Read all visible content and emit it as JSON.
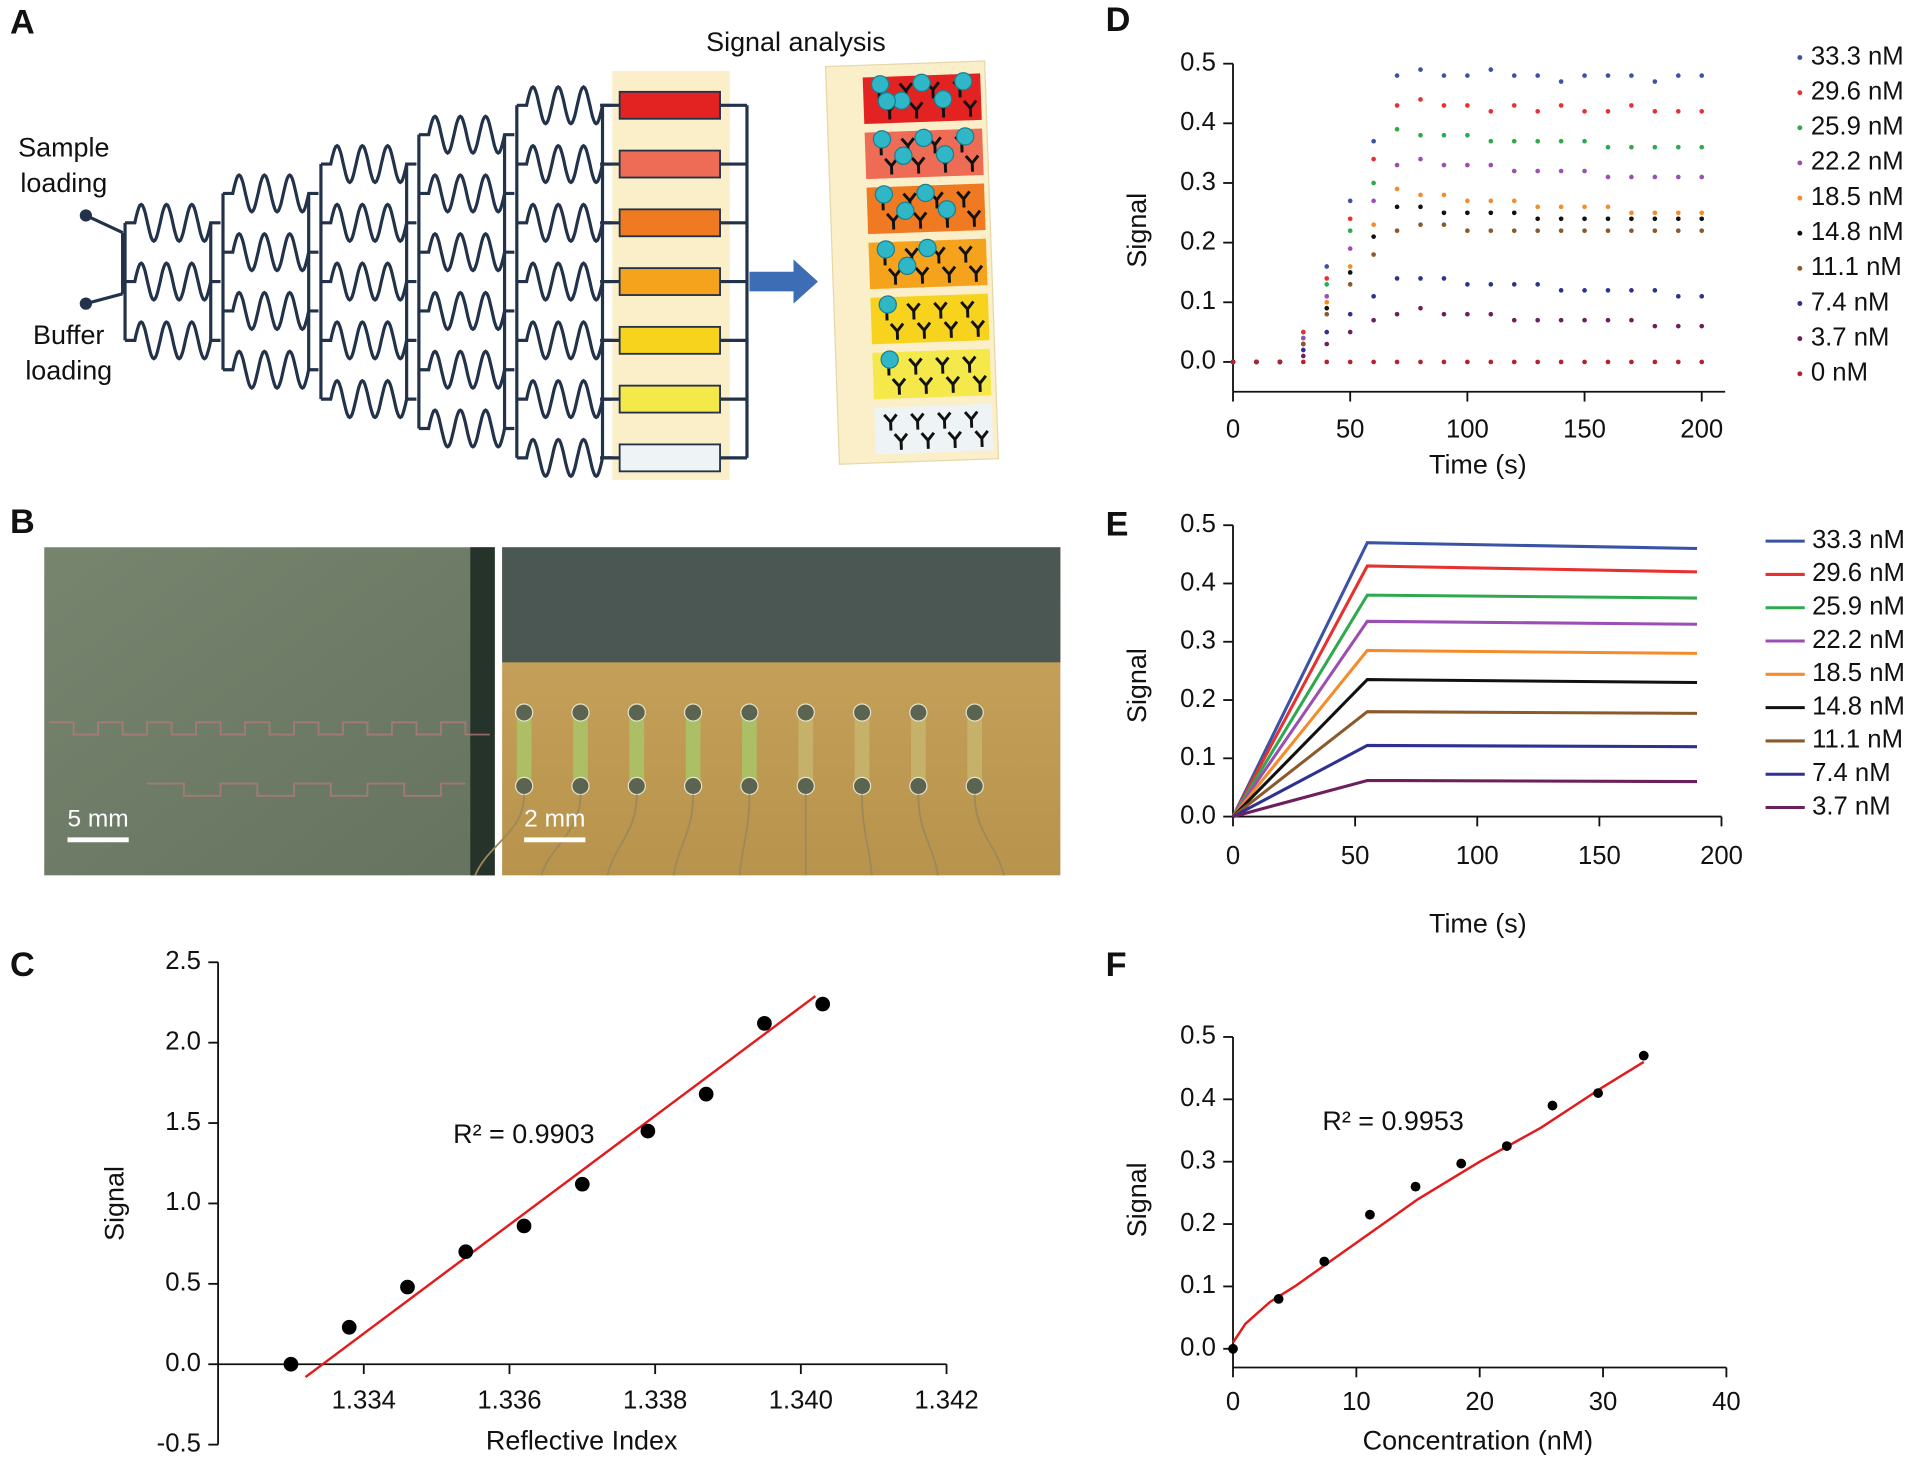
{
  "figure": {
    "panel_labels": [
      "A",
      "B",
      "C",
      "D",
      "E",
      "F"
    ],
    "panel_a": {
      "sample_loading": [
        "Sample",
        "loading"
      ],
      "buffer_loading": [
        "Buffer",
        "loading"
      ],
      "signal_analysis": "Signal analysis"
    },
    "panel_b": {
      "scale_bars": [
        "5 mm",
        "2 mm"
      ]
    }
  },
  "chart_data": [
    {
      "type": "scatter",
      "x_label": "Reflective Index",
      "y_label": "Signal",
      "annotation": "R² = 0.9903",
      "x": [
        1.333,
        1.3338,
        1.3346,
        1.3354,
        1.3362,
        1.337,
        1.3379,
        1.3387,
        1.3395,
        1.3403
      ],
      "values": [
        0,
        0.23,
        0.48,
        0.7,
        0.86,
        1.12,
        1.45,
        1.68,
        2.12,
        2.24
      ],
      "color": "#000000",
      "fit": {
        "x": [
          1.3332,
          1.3402
        ],
        "values": [
          -0.08,
          2.29
        ],
        "color": "#e31a1c"
      },
      "xlim": [
        1.332,
        1.342
      ],
      "xticks": [
        1.334,
        1.336,
        1.338,
        {
          "value": 1.34,
          "label": "1.340"
        },
        1.342
      ],
      "ylim": [
        -0.5,
        2.5
      ],
      "yticks": [
        -0.5,
        {
          "value": 0,
          "label": "0.0"
        },
        0.5,
        {
          "value": 1,
          "label": "1.0"
        },
        1.5,
        {
          "value": 2,
          "label": "2.0"
        },
        2.5
      ]
    },
    {
      "type": "scatter",
      "x_label": "Time (s)",
      "y_label": "Signal",
      "x": [
        0,
        10,
        20,
        30,
        40,
        50,
        60,
        70,
        80,
        90,
        100,
        110,
        120,
        130,
        140,
        150,
        160,
        170,
        180,
        190,
        200
      ],
      "series": [
        {
          "name": "33.3 nM",
          "color": "#3a53a4",
          "values": [
            0,
            0,
            0,
            0.05,
            0.16,
            0.27,
            0.37,
            0.48,
            0.49,
            0.48,
            0.48,
            0.49,
            0.48,
            0.48,
            0.47,
            0.48,
            0.48,
            0.48,
            0.47,
            0.48,
            0.48
          ]
        },
        {
          "name": "29.6 nM",
          "color": "#e8312f",
          "values": [
            0,
            0,
            0,
            0.05,
            0.14,
            0.24,
            0.34,
            0.43,
            0.44,
            0.43,
            0.43,
            0.42,
            0.43,
            0.42,
            0.43,
            0.42,
            0.42,
            0.43,
            0.42,
            0.42,
            0.42
          ]
        },
        {
          "name": "25.9 nM",
          "color": "#2fa84f",
          "values": [
            0,
            0,
            0,
            0.04,
            0.13,
            0.22,
            0.3,
            0.39,
            0.38,
            0.38,
            0.38,
            0.37,
            0.37,
            0.37,
            0.37,
            0.37,
            0.36,
            0.36,
            0.36,
            0.36,
            0.36
          ]
        },
        {
          "name": "22.2 nM",
          "color": "#9b4fb3",
          "values": [
            0,
            0,
            0,
            0.04,
            0.11,
            0.19,
            0.27,
            0.33,
            0.34,
            0.33,
            0.33,
            0.33,
            0.32,
            0.32,
            0.32,
            0.32,
            0.31,
            0.31,
            0.31,
            0.31,
            0.31
          ]
        },
        {
          "name": "18.5 nM",
          "color": "#f58b2a",
          "values": [
            0,
            0,
            0,
            0.03,
            0.1,
            0.16,
            0.23,
            0.29,
            0.28,
            0.28,
            0.27,
            0.27,
            0.27,
            0.26,
            0.26,
            0.26,
            0.26,
            0.25,
            0.25,
            0.25,
            0.25
          ]
        },
        {
          "name": "14.8 nM",
          "color": "#111111",
          "values": [
            0,
            0,
            0,
            0.03,
            0.09,
            0.15,
            0.21,
            0.26,
            0.26,
            0.25,
            0.25,
            0.25,
            0.25,
            0.24,
            0.24,
            0.24,
            0.24,
            0.24,
            0.24,
            0.24,
            0.24
          ]
        },
        {
          "name": "11.1 nM",
          "color": "#8b5a2b",
          "values": [
            0,
            0,
            0,
            0.03,
            0.08,
            0.13,
            0.18,
            0.22,
            0.23,
            0.23,
            0.22,
            0.22,
            0.22,
            0.22,
            0.22,
            0.22,
            0.22,
            0.22,
            0.22,
            0.22,
            0.22
          ]
        },
        {
          "name": "7.4 nM",
          "color": "#2e3192",
          "values": [
            0,
            0,
            0,
            0.02,
            0.05,
            0.08,
            0.11,
            0.14,
            0.14,
            0.14,
            0.13,
            0.13,
            0.13,
            0.13,
            0.12,
            0.12,
            0.12,
            0.12,
            0.12,
            0.11,
            0.11
          ]
        },
        {
          "name": "3.7 nM",
          "color": "#6b1f5c",
          "values": [
            0,
            0,
            0,
            0.01,
            0.03,
            0.05,
            0.07,
            0.08,
            0.09,
            0.08,
            0.08,
            0.08,
            0.07,
            0.07,
            0.07,
            0.07,
            0.07,
            0.07,
            0.06,
            0.06,
            0.06
          ]
        },
        {
          "name": "0 nM",
          "color": "#b2242b",
          "values": [
            0,
            0,
            0,
            0,
            0,
            0,
            0,
            0,
            0,
            0,
            0,
            0,
            0,
            0,
            0,
            0,
            0,
            0,
            0,
            0,
            0
          ]
        }
      ],
      "xlim": [
        0,
        210
      ],
      "xticks": [
        0,
        50,
        100,
        150,
        200
      ],
      "ylim": [
        -0.05,
        0.5
      ],
      "yticks": [
        {
          "value": 0,
          "label": "0.0"
        },
        0.1,
        0.2,
        0.3,
        0.4,
        0.5
      ]
    },
    {
      "type": "line",
      "x_label": "Time (s)",
      "y_label": "Signal",
      "x": [
        0,
        55,
        190
      ],
      "series": [
        {
          "name": "33.3 nM",
          "color": "#3a53a4",
          "values": [
            0,
            0.47,
            0.46
          ]
        },
        {
          "name": "29.6 nM",
          "color": "#e8312f",
          "values": [
            0,
            0.43,
            0.42
          ]
        },
        {
          "name": "25.9 nM",
          "color": "#2fa84f",
          "values": [
            0,
            0.38,
            0.375
          ]
        },
        {
          "name": "22.2 nM",
          "color": "#9b4fb3",
          "values": [
            0,
            0.335,
            0.33
          ]
        },
        {
          "name": "18.5 nM",
          "color": "#f58b2a",
          "values": [
            0,
            0.285,
            0.28
          ]
        },
        {
          "name": "14.8 nM",
          "color": "#111111",
          "values": [
            0,
            0.235,
            0.23
          ]
        },
        {
          "name": "11.1 nM",
          "color": "#8b5a2b",
          "values": [
            0,
            0.18,
            0.177
          ]
        },
        {
          "name": "7.4 nM",
          "color": "#2e3192",
          "values": [
            0,
            0.122,
            0.12
          ]
        },
        {
          "name": "3.7 nM",
          "color": "#6b1f5c",
          "values": [
            0,
            0.062,
            0.06
          ]
        }
      ],
      "xlim": [
        0,
        200
      ],
      "xticks": [
        0,
        50,
        100,
        150,
        200
      ],
      "ylim": [
        0,
        0.5
      ],
      "yticks": [
        {
          "value": 0,
          "label": "0.0"
        },
        0.1,
        0.2,
        0.3,
        0.4,
        0.5
      ]
    },
    {
      "type": "scatter",
      "x_label": "Concentration (nM)",
      "y_label": "Signal",
      "annotation": "R² = 0.9953",
      "x": [
        0,
        3.7,
        7.4,
        11.1,
        14.8,
        18.5,
        22.2,
        25.9,
        29.6,
        33.3
      ],
      "values": [
        0,
        0.08,
        0.14,
        0.215,
        0.26,
        0.297,
        0.325,
        0.39,
        0.41,
        0.47
      ],
      "color": "#000000",
      "fit": {
        "x": [
          0,
          1,
          3,
          5,
          10,
          15,
          20,
          25,
          30,
          33.3
        ],
        "values": [
          0.01,
          0.04,
          0.075,
          0.1,
          0.17,
          0.24,
          0.3,
          0.355,
          0.42,
          0.46
        ],
        "color": "#e31a1c"
      },
      "xlim": [
        0,
        40
      ],
      "xticks": [
        0,
        10,
        20,
        30,
        40
      ],
      "ylim": [
        -0.03,
        0.5
      ],
      "yticks": [
        {
          "value": 0,
          "label": "0.0"
        },
        0.1,
        0.2,
        0.3,
        0.4,
        0.5
      ]
    }
  ]
}
